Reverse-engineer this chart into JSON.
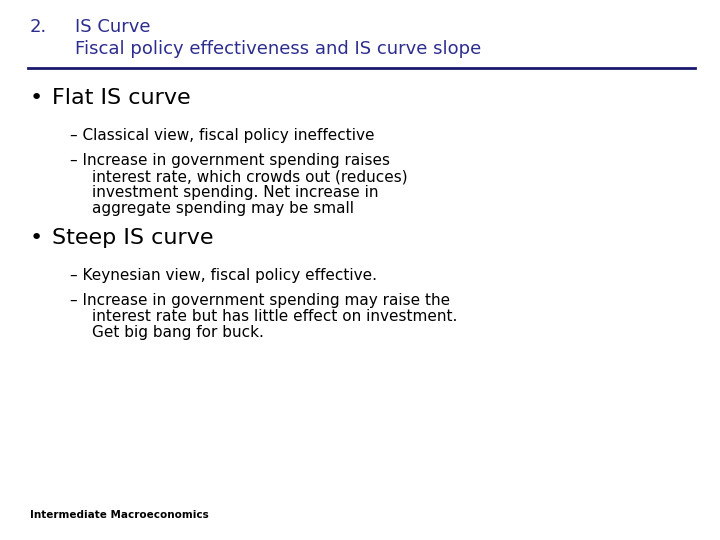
{
  "background_color": "#ffffff",
  "title_number": "2.",
  "title_line1": "IS Curve",
  "title_line2": "Fiscal policy effectiveness and IS curve slope",
  "title_color": "#2d2d8f",
  "separator_color": "#1a1a6e",
  "bullet1_text": "Flat IS curve",
  "body_color": "#000000",
  "sub1_1": "Classical view, fiscal policy ineffective",
  "sub1_2_line1": "Increase in government spending raises",
  "sub1_2_line2": "interest rate, which crowds out (reduces)",
  "sub1_2_line3": "investment spending. Net increase in",
  "sub1_2_line4": "aggregate spending may be small",
  "bullet2_text": "Steep IS curve",
  "sub2_1": "Keynesian view, fiscal policy effective.",
  "sub2_2_line1": "Increase in government spending may raise the",
  "sub2_2_line2": "interest rate but has little effect on investment.",
  "sub2_2_line3": "Get big bang for buck.",
  "footer_text": "Intermediate Macroeconomics",
  "title_fs": 13,
  "bullet_fs": 16,
  "sub_fs": 11,
  "footer_fs": 7.5
}
